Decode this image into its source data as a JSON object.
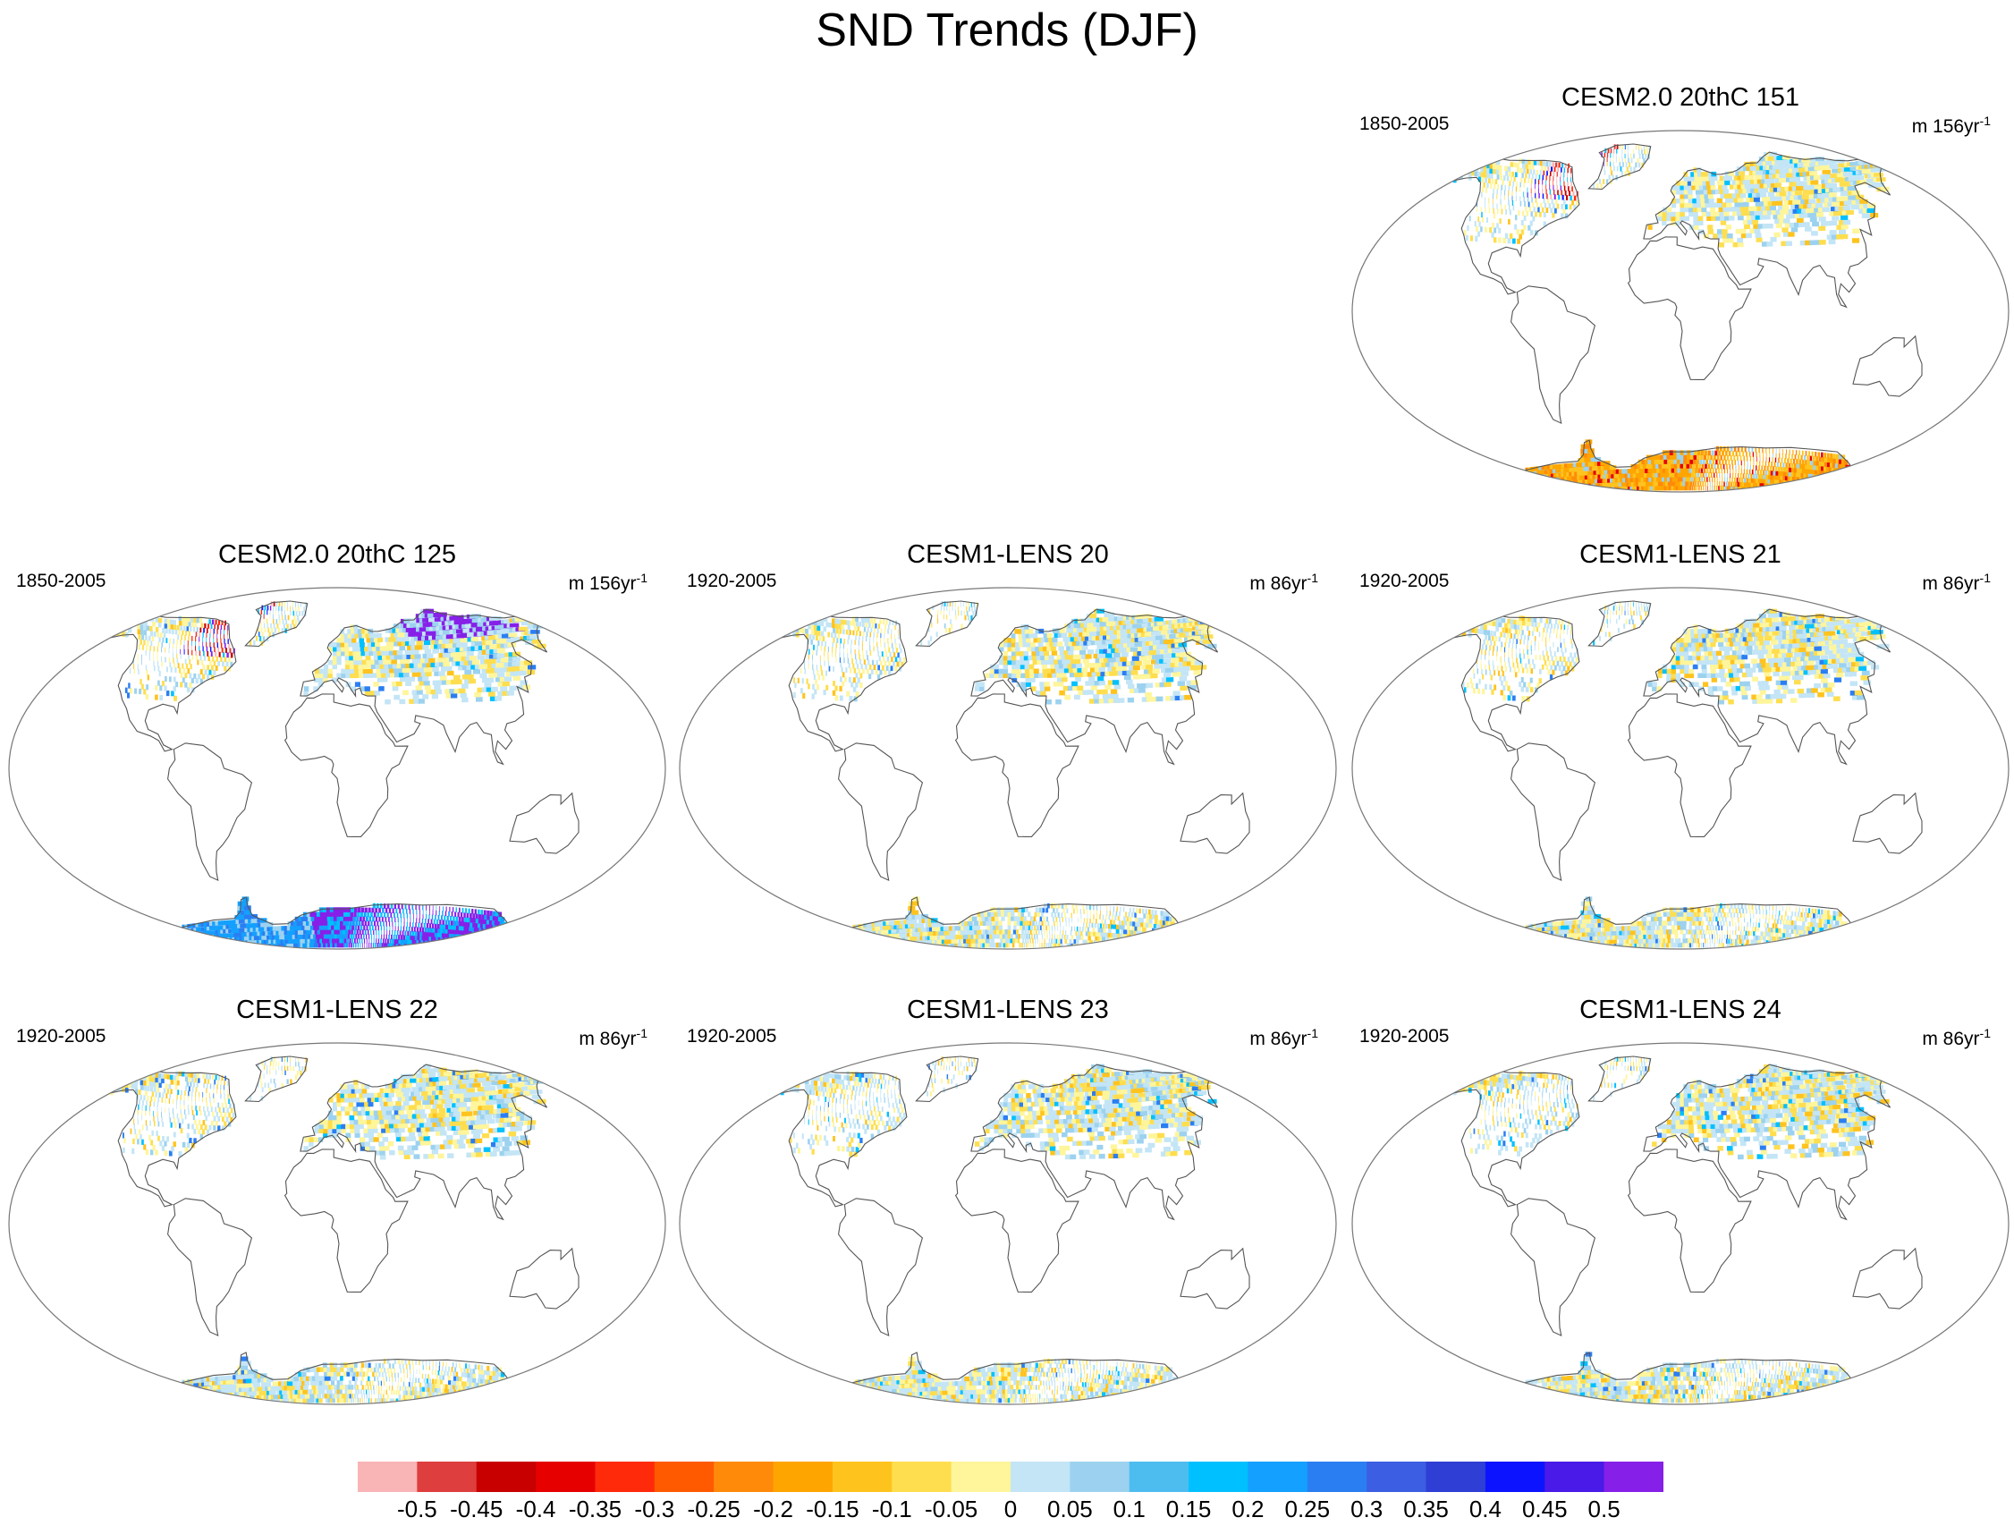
{
  "title": "SND Trends (DJF)",
  "panels": [
    {
      "title": "CESM2.0 20thC 151",
      "period": "1850-2005",
      "unit_prefix": "m 156yr",
      "unit_exp": "-1",
      "pattern": 0
    },
    {
      "title": "CESM2.0 20thC 125",
      "period": "1850-2005",
      "unit_prefix": "m 156yr",
      "unit_exp": "-1",
      "pattern": 1
    },
    {
      "title": "CESM1-LENS 20",
      "period": "1920-2005",
      "unit_prefix": "m 86yr",
      "unit_exp": "-1",
      "pattern": 2
    },
    {
      "title": "CESM1-LENS 21",
      "period": "1920-2005",
      "unit_prefix": "m 86yr",
      "unit_exp": "-1",
      "pattern": 3
    },
    {
      "title": "CESM1-LENS 22",
      "period": "1920-2005",
      "unit_prefix": "m 86yr",
      "unit_exp": "-1",
      "pattern": 4
    },
    {
      "title": "CESM1-LENS 23",
      "period": "1920-2005",
      "unit_prefix": "m 86yr",
      "unit_exp": "-1",
      "pattern": 5
    },
    {
      "title": "CESM1-LENS 24",
      "period": "1920-2005",
      "unit_prefix": "m 86yr",
      "unit_exp": "-1",
      "pattern": 6
    }
  ],
  "colorbar": {
    "labels": [
      "-0.5",
      "-0.45",
      "-0.4",
      "-0.35",
      "-0.3",
      "-0.25",
      "-0.2",
      "-0.15",
      "-0.1",
      "-0.05",
      "0",
      "0.05",
      "0.1",
      "0.15",
      "0.2",
      "0.25",
      "0.3",
      "0.35",
      "0.4",
      "0.45",
      "0.5"
    ],
    "colors": [
      "#f9b4b6",
      "#de3e3e",
      "#c80000",
      "#e60000",
      "#ff2a0a",
      "#ff5a00",
      "#ff8a0a",
      "#ffa500",
      "#ffc31e",
      "#fede4e",
      "#fff59b",
      "#c3e5f6",
      "#9cd2ef",
      "#4dbdf0",
      "#00c0ff",
      "#14a0ff",
      "#2b7ef2",
      "#3b5ee3",
      "#2f3ed4",
      "#0c14ff",
      "#4a1ae8",
      "#8620e8"
    ]
  },
  "chart_data": {
    "type": "heatmap",
    "title": "SND Trends (DJF)",
    "variable": "SND",
    "season": "DJF",
    "panels": [
      "CESM2.0 20thC 151",
      "CESM2.0 20thC 125",
      "CESM1-LENS 20",
      "CESM1-LENS 21",
      "CESM1-LENS 22",
      "CESM1-LENS 23",
      "CESM1-LENS 24"
    ],
    "colorbar_levels": [
      -0.5,
      -0.45,
      -0.4,
      -0.35,
      -0.3,
      -0.25,
      -0.2,
      -0.15,
      -0.1,
      -0.05,
      0,
      0.05,
      0.1,
      0.15,
      0.2,
      0.25,
      0.3,
      0.35,
      0.4,
      0.45,
      0.5
    ],
    "colorbar_range": [
      -0.5,
      0.5
    ]
  }
}
